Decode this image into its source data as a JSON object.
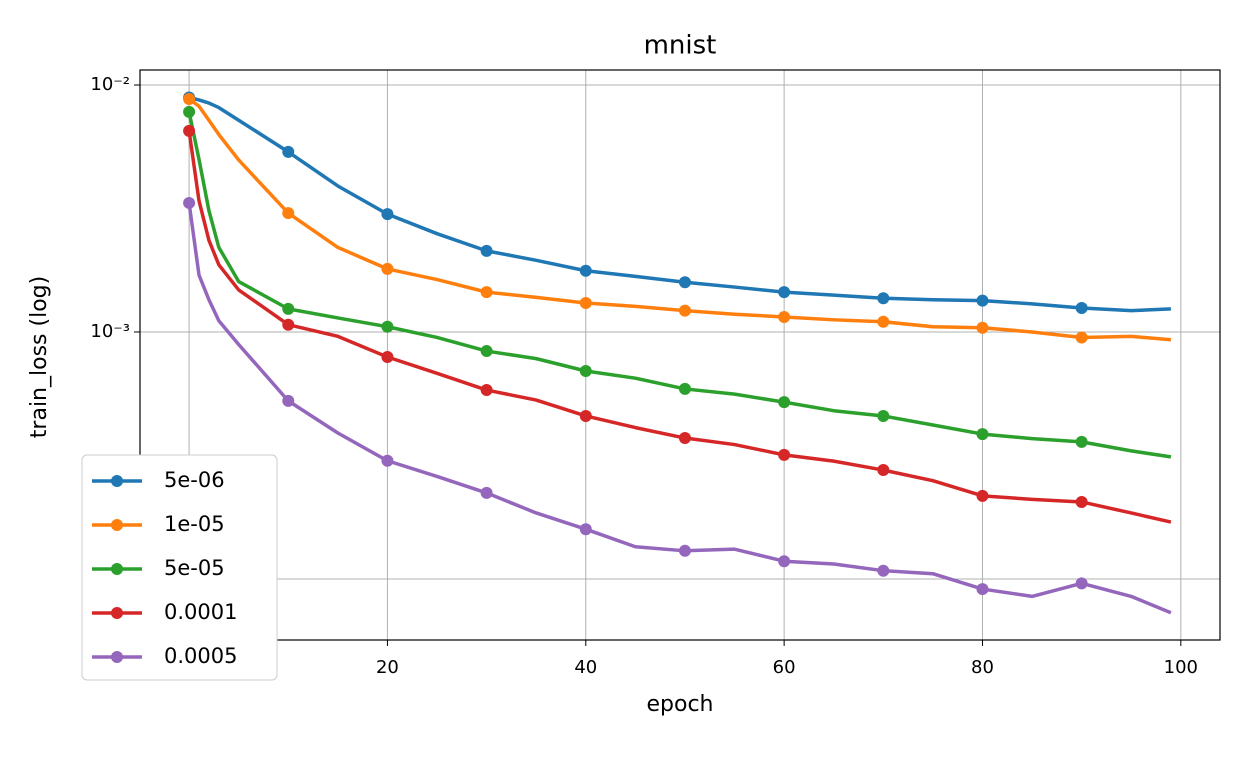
{
  "chart_data": {
    "type": "line",
    "title": "mnist",
    "xlabel": "epoch",
    "ylabel": "train_loss (log)",
    "x": [
      0,
      1,
      2,
      3,
      5,
      10,
      15,
      20,
      25,
      30,
      35,
      40,
      45,
      50,
      55,
      60,
      65,
      70,
      75,
      80,
      85,
      90,
      95,
      99
    ],
    "markevery": 10,
    "series": [
      {
        "name": "5e-06",
        "color": "#1f77b4",
        "values": [
          0.0089,
          0.0087,
          0.00845,
          0.0081,
          0.0072,
          0.00536,
          0.0039,
          0.003,
          0.0025,
          0.00213,
          0.00195,
          0.00177,
          0.00168,
          0.00159,
          0.00152,
          0.00145,
          0.00141,
          0.00137,
          0.00135,
          0.00134,
          0.0013,
          0.00125,
          0.00122,
          0.00124
        ]
      },
      {
        "name": "1e-05",
        "color": "#ff7f0e",
        "values": [
          0.00878,
          0.0082,
          0.0072,
          0.0063,
          0.00497,
          0.00303,
          0.0022,
          0.0018,
          0.00163,
          0.00145,
          0.00138,
          0.00131,
          0.00127,
          0.00122,
          0.00118,
          0.00115,
          0.00112,
          0.0011,
          0.00105,
          0.00104,
          0.001,
          0.00095,
          0.00096,
          0.00093
        ]
      },
      {
        "name": "5e-05",
        "color": "#2ca02c",
        "values": [
          0.00778,
          0.005,
          0.0031,
          0.0022,
          0.0016,
          0.00124,
          0.00114,
          0.00105,
          0.00095,
          0.000837,
          0.00078,
          0.000695,
          0.00065,
          0.000588,
          0.00056,
          0.00052,
          0.00048,
          0.000457,
          0.00042,
          0.000386,
          0.00037,
          0.000359,
          0.00033,
          0.000312
        ]
      },
      {
        "name": "0.0001",
        "color": "#d62728",
        "values": [
          0.00652,
          0.0034,
          0.00235,
          0.00187,
          0.00148,
          0.00107,
          0.00096,
          0.000792,
          0.00068,
          0.000582,
          0.00053,
          0.000457,
          0.00041,
          0.000372,
          0.00035,
          0.000318,
          0.0003,
          0.000276,
          0.00025,
          0.000217,
          0.00021,
          0.000205,
          0.000185,
          0.00017
        ]
      },
      {
        "name": "0.0005",
        "color": "#9467bd",
        "values": [
          0.00333,
          0.0017,
          0.00135,
          0.00111,
          0.00089,
          0.000526,
          0.00039,
          0.000301,
          0.00026,
          0.000223,
          0.000185,
          0.000159,
          0.000135,
          0.00013,
          0.000132,
          0.000118,
          0.000115,
          0.000108,
          0.000105,
          9.1e-05,
          8.5e-05,
          9.6e-05,
          8.5e-05,
          7.3e-05
        ]
      }
    ],
    "xlim": [
      -4.95,
      103.95
    ],
    "xticks": [
      0,
      20,
      40,
      60,
      80,
      100
    ],
    "ylim": [
      5.66e-05,
      0.0115
    ],
    "ylog": true,
    "yticks": [
      {
        "value": 0.0001,
        "label": "10⁻⁴"
      },
      {
        "value": 0.001,
        "label": "10⁻³"
      },
      {
        "value": 0.01,
        "label": "10⁻²"
      }
    ],
    "grid": true,
    "legend": "lower left"
  }
}
